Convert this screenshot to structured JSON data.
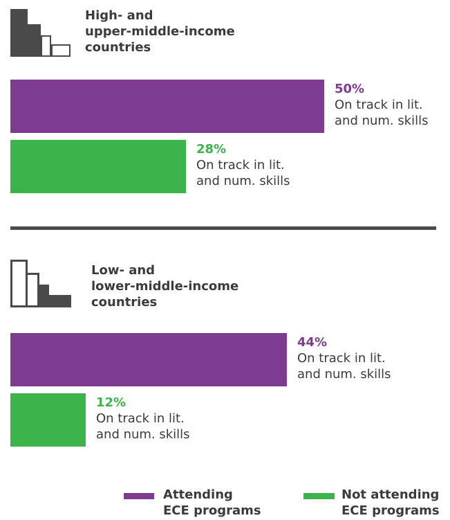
{
  "colors": {
    "attending": "#7d3c8f",
    "not_attending": "#3cb44b",
    "text": "#3b3b3b",
    "icon": "#4a4a4a"
  },
  "chart_data": {
    "type": "bar",
    "orientation": "horizontal",
    "unit": "%",
    "xlim": [
      0,
      50
    ],
    "groups": [
      {
        "title": "High- and\nupper-middle-income\ncountries",
        "icon": "building-blocks-icon-filled",
        "bars": [
          {
            "series": "Attending\nECE programs",
            "value": 50,
            "label": "50%",
            "description": "On track in lit.\nand num. skills"
          },
          {
            "series": "Not attending\nECE programs",
            "value": 28,
            "label": "28%",
            "description": "On track in lit.\nand num. skills"
          }
        ]
      },
      {
        "title": "Low- and\nlower-middle-income\ncountries",
        "icon": "building-blocks-icon-outline",
        "bars": [
          {
            "series": "Attending\nECE programs",
            "value": 44,
            "label": "44%",
            "description": "On track in lit.\nand num. skills"
          },
          {
            "series": "Not attending\nECE programs",
            "value": 12,
            "label": "12%",
            "description": "On track in lit.\nand num. skills"
          }
        ]
      }
    ],
    "legend": {
      "placement": "bottom",
      "items": [
        {
          "name": "Attending\nECE programs",
          "color": "#7d3c8f"
        },
        {
          "name": "Not attending\nECE programs",
          "color": "#3cb44b"
        }
      ]
    }
  }
}
